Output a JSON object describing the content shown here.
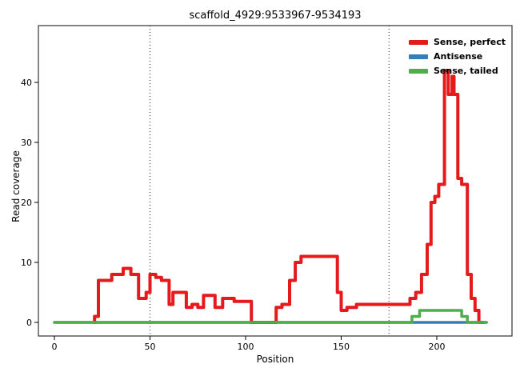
{
  "chart_data": {
    "type": "line",
    "title": "scaffold_4929:9533967-9534193",
    "xlabel": "Position",
    "ylabel": "Read coverage",
    "xlim": [
      -8,
      239
    ],
    "ylim": [
      -2.3,
      49.5
    ],
    "x_ticks": [
      0,
      50,
      100,
      150,
      200
    ],
    "y_ticks": [
      0,
      10,
      20,
      30,
      40
    ],
    "grid": false,
    "panel_border_color": "#333333",
    "vlines": {
      "positions": [
        50,
        175
      ],
      "style": "dotted",
      "color": "#222222"
    },
    "legend_position": "top-right",
    "series": [
      {
        "name": "Sense, perfect",
        "color": "#e41a1c",
        "width": 4,
        "points": [
          [
            21,
            0
          ],
          [
            21,
            1
          ],
          [
            23,
            1
          ],
          [
            23,
            7
          ],
          [
            30,
            7
          ],
          [
            30,
            8
          ],
          [
            36,
            8
          ],
          [
            36,
            9
          ],
          [
            40,
            9
          ],
          [
            40,
            8
          ],
          [
            43,
            8
          ],
          [
            43,
            8
          ],
          [
            44,
            8
          ],
          [
            44,
            4
          ],
          [
            48,
            4
          ],
          [
            48,
            5
          ],
          [
            50,
            5
          ],
          [
            50,
            8
          ],
          [
            53,
            8
          ],
          [
            53,
            7.5
          ],
          [
            56,
            7.5
          ],
          [
            56,
            7
          ],
          [
            60,
            7
          ],
          [
            60,
            3
          ],
          [
            62,
            3
          ],
          [
            62,
            5
          ],
          [
            69,
            5
          ],
          [
            69,
            2.5
          ],
          [
            72,
            2.5
          ],
          [
            72,
            3
          ],
          [
            75,
            3
          ],
          [
            75,
            2.5
          ],
          [
            78,
            2.5
          ],
          [
            78,
            4.5
          ],
          [
            84,
            4.5
          ],
          [
            84,
            2.5
          ],
          [
            88,
            2.5
          ],
          [
            88,
            4
          ],
          [
            94,
            4
          ],
          [
            94,
            3.5
          ],
          [
            103,
            3.5
          ],
          [
            103,
            0
          ],
          [
            116,
            0
          ],
          [
            116,
            2.5
          ],
          [
            119,
            2.5
          ],
          [
            119,
            3
          ],
          [
            123,
            3
          ],
          [
            123,
            7
          ],
          [
            126,
            7
          ],
          [
            126,
            10
          ],
          [
            129,
            10
          ],
          [
            129,
            11
          ],
          [
            148,
            11
          ],
          [
            148,
            5
          ],
          [
            150,
            5
          ],
          [
            150,
            2
          ],
          [
            153,
            2
          ],
          [
            153,
            2.5
          ],
          [
            158,
            2.5
          ],
          [
            158,
            3
          ],
          [
            186,
            3
          ],
          [
            186,
            4
          ],
          [
            189,
            4
          ],
          [
            189,
            5
          ],
          [
            192,
            5
          ],
          [
            192,
            8
          ],
          [
            195,
            8
          ],
          [
            195,
            13
          ],
          [
            197,
            13
          ],
          [
            197,
            20
          ],
          [
            199,
            20
          ],
          [
            199,
            21
          ],
          [
            201,
            21
          ],
          [
            201,
            23
          ],
          [
            204,
            23
          ],
          [
            204,
            42
          ],
          [
            206,
            42
          ],
          [
            206,
            38
          ],
          [
            208,
            38
          ],
          [
            208,
            41
          ],
          [
            209,
            41
          ],
          [
            209,
            38
          ],
          [
            211,
            38
          ],
          [
            211,
            24
          ],
          [
            213,
            24
          ],
          [
            213,
            23
          ],
          [
            216,
            23
          ],
          [
            216,
            8
          ],
          [
            218,
            8
          ],
          [
            218,
            4
          ],
          [
            220,
            4
          ],
          [
            220,
            2
          ],
          [
            222,
            2
          ],
          [
            222,
            0
          ],
          [
            224,
            0
          ]
        ]
      },
      {
        "name": "Antisense",
        "color": "#377eb8",
        "width": 3.5,
        "points": [
          [
            0,
            0
          ],
          [
            226,
            0
          ]
        ]
      },
      {
        "name": "Sense, tailed",
        "color": "#4daf4a",
        "width": 3.5,
        "points": [
          [
            0,
            0
          ],
          [
            187,
            0
          ],
          [
            187,
            1
          ],
          [
            191,
            1
          ],
          [
            191,
            2
          ],
          [
            213,
            2
          ],
          [
            213,
            1
          ],
          [
            216,
            1
          ],
          [
            216,
            0
          ],
          [
            226,
            0
          ]
        ]
      }
    ],
    "draw_order": [
      1,
      0,
      2
    ]
  }
}
